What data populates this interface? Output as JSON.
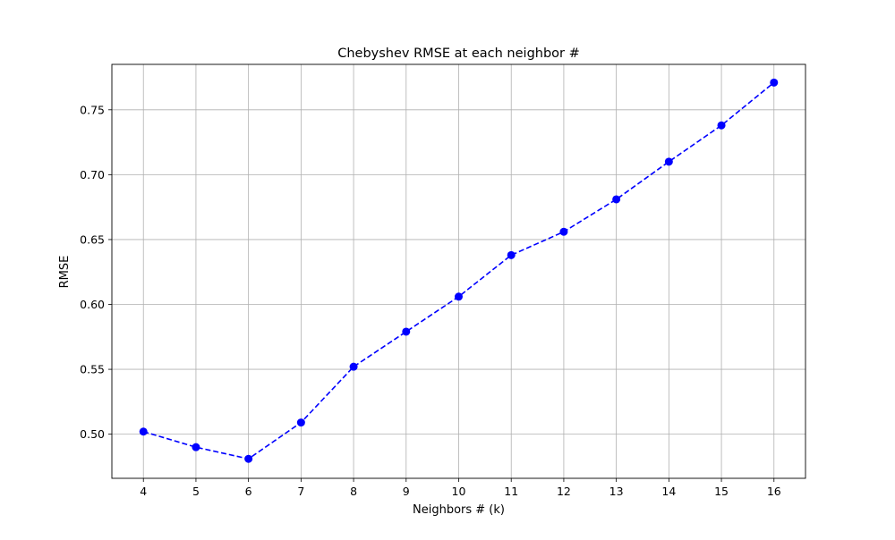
{
  "chart_data": {
    "type": "line",
    "title": "Chebyshev RMSE at each neighbor #",
    "xlabel": "Neighbors # (k)",
    "ylabel": "RMSE",
    "x": [
      4,
      5,
      6,
      7,
      8,
      9,
      10,
      11,
      12,
      13,
      14,
      15,
      16
    ],
    "xlim": [
      3.4,
      16.6
    ],
    "ylim": [
      0.466,
      0.785
    ],
    "xticks": [
      "4",
      "5",
      "6",
      "7",
      "8",
      "9",
      "10",
      "11",
      "12",
      "13",
      "14",
      "15",
      "16"
    ],
    "yticks": [
      "0.50",
      "0.55",
      "0.60",
      "0.65",
      "0.70",
      "0.75"
    ],
    "grid": true,
    "series": [
      {
        "values": [
          0.502,
          0.49,
          0.481,
          0.509,
          0.552,
          0.579,
          0.606,
          0.638,
          0.656,
          0.681,
          0.71,
          0.738,
          0.771
        ],
        "color": "#0000ff",
        "line_style": "dashed",
        "marker": "circle"
      }
    ]
  }
}
